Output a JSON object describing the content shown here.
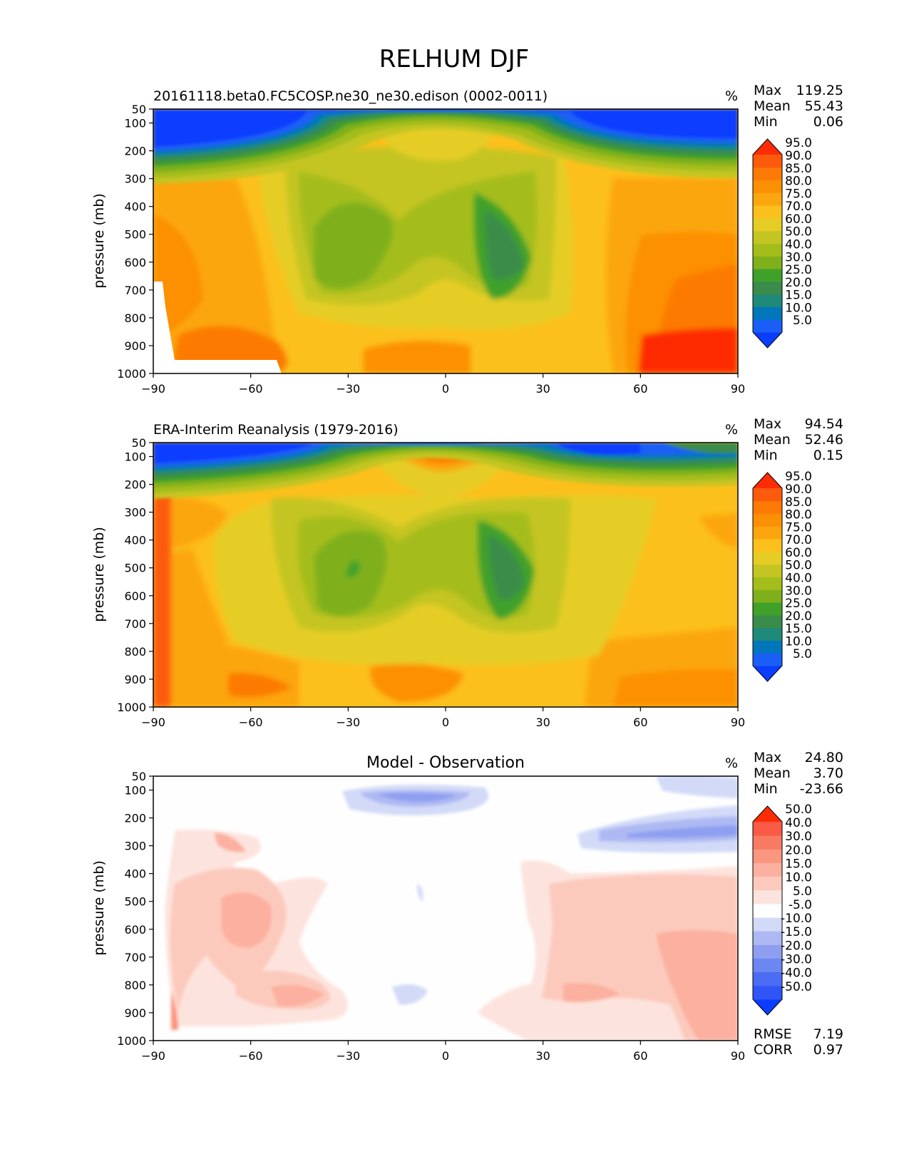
{
  "page_title": "RELHUM DJF",
  "panels": [
    {
      "id": "model",
      "title_left": "20161118.beta0.FC5COSP.ne30_ne30.edison (0002-0011)",
      "title_center": "",
      "units": "%",
      "stats": [
        {
          "label": "Max",
          "value": "119.25"
        },
        {
          "label": "Mean",
          "value": "55.43"
        },
        {
          "label": "Min",
          "value": "0.06"
        }
      ],
      "bottom_stats": []
    },
    {
      "id": "obs",
      "title_left": "ERA-Interim Reanalysis (1979-2016)",
      "title_center": "",
      "units": "%",
      "stats": [
        {
          "label": "Max",
          "value": "94.54"
        },
        {
          "label": "Mean",
          "value": "52.46"
        },
        {
          "label": "Min",
          "value": "0.15"
        }
      ],
      "bottom_stats": []
    },
    {
      "id": "diff",
      "title_left": "",
      "title_center": "Model - Observation",
      "units": "%",
      "stats": [
        {
          "label": "Max",
          "value": "24.80"
        },
        {
          "label": "Mean",
          "value": "3.70"
        },
        {
          "label": "Min",
          "value": "-23.66"
        }
      ],
      "bottom_stats": [
        {
          "label": "RMSE",
          "value": "7.19"
        },
        {
          "label": "CORR",
          "value": "0.97"
        }
      ]
    }
  ],
  "chart_data": [
    {
      "type": "heatmap",
      "title": "20161118.beta0.FC5COSP.ne30_ne30.edison (0002-0011)",
      "xlabel": "",
      "ylabel": "pressure (mb)",
      "xlim": [
        -90,
        90
      ],
      "ylim": [
        1000,
        50
      ],
      "y_scale": "linear, inverted",
      "x_ticks": [
        -90,
        -60,
        -30,
        0,
        30,
        60,
        90
      ],
      "y_ticks": [
        50,
        100,
        200,
        300,
        400,
        500,
        600,
        700,
        800,
        900,
        1000
      ],
      "colorbar": {
        "levels": [
          5.0,
          10.0,
          15.0,
          20.0,
          25.0,
          30.0,
          40.0,
          50.0,
          60.0,
          70.0,
          75.0,
          80.0,
          85.0,
          90.0,
          95.0
        ],
        "colors": [
          "#0a3dff",
          "#1a5ff5",
          "#0077bb",
          "#1f8a7a",
          "#3a8c4a",
          "#3fa12a",
          "#7fb01c",
          "#a4bd1a",
          "#c4c522",
          "#e5cd26",
          "#fcc01c",
          "#fca60f",
          "#fc9005",
          "#fc7a05",
          "#fc5a0d",
          "#fd2c05"
        ],
        "extend": "both"
      }
    },
    {
      "type": "heatmap",
      "title": "ERA-Interim Reanalysis (1979-2016)",
      "xlabel": "",
      "ylabel": "pressure (mb)",
      "xlim": [
        -90,
        90
      ],
      "ylim": [
        1000,
        50
      ],
      "y_scale": "linear, inverted",
      "x_ticks": [
        -90,
        -60,
        -30,
        0,
        30,
        60,
        90
      ],
      "y_ticks": [
        50,
        100,
        200,
        300,
        400,
        500,
        600,
        700,
        800,
        900,
        1000
      ],
      "colorbar": {
        "levels": [
          5.0,
          10.0,
          15.0,
          20.0,
          25.0,
          30.0,
          40.0,
          50.0,
          60.0,
          70.0,
          75.0,
          80.0,
          85.0,
          90.0,
          95.0
        ],
        "colors": [
          "#0a3dff",
          "#1a5ff5",
          "#0077bb",
          "#1f8a7a",
          "#3a8c4a",
          "#3fa12a",
          "#7fb01c",
          "#a4bd1a",
          "#c4c522",
          "#e5cd26",
          "#fcc01c",
          "#fca60f",
          "#fc9005",
          "#fc7a05",
          "#fc5a0d",
          "#fd2c05"
        ],
        "extend": "both"
      }
    },
    {
      "type": "heatmap",
      "title": "Model - Observation",
      "xlabel": "",
      "ylabel": "pressure (mb)",
      "xlim": [
        -90,
        90
      ],
      "ylim": [
        1000,
        50
      ],
      "y_scale": "linear, inverted",
      "x_ticks": [
        -90,
        -60,
        -30,
        0,
        30,
        60,
        90
      ],
      "y_ticks": [
        50,
        100,
        200,
        300,
        400,
        500,
        600,
        700,
        800,
        900,
        1000
      ],
      "colorbar": {
        "levels": [
          -50.0,
          -40.0,
          -30.0,
          -20.0,
          -15.0,
          -10.0,
          -5.0,
          5.0,
          10.0,
          15.0,
          20.0,
          30.0,
          40.0,
          50.0
        ],
        "colors": [
          "#0a3dff",
          "#2f55f7",
          "#4b6cf3",
          "#6c86f2",
          "#8e9ff1",
          "#aeb9f3",
          "#d2daf8",
          "#fefefe",
          "#fde3dd",
          "#fccabd",
          "#fcb09f",
          "#fb967f",
          "#f97a63",
          "#f85a45",
          "#fd2c05"
        ],
        "extend": "both"
      }
    }
  ]
}
